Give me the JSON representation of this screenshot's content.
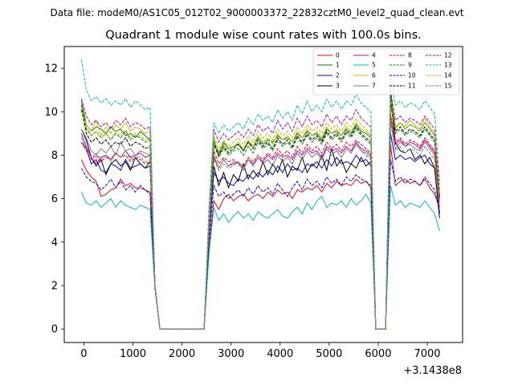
{
  "suptitle": "Data file: modeM0/AS1C05_012T02_9000003372_22832cztM0_level2_quad_clean.evt",
  "chart_data": {
    "type": "line",
    "title": "Quadrant 1 module wise count rates with 100.0s bins.",
    "xlabel": "",
    "ylabel": "",
    "x_offset_label": "+3.1438e8",
    "xlim": [
      -400,
      7720
    ],
    "ylim": [
      -0.62,
      13.0
    ],
    "x_ticks": [
      0,
      1000,
      2000,
      3000,
      4000,
      5000,
      6000,
      7000
    ],
    "x_tick_labels": [
      "0",
      "1000",
      "2000",
      "3000",
      "4000",
      "5000",
      "6000",
      "7000"
    ],
    "y_ticks": [
      0,
      2,
      4,
      6,
      8,
      10,
      12
    ],
    "y_tick_labels": [
      "0",
      "2",
      "4",
      "6",
      "8",
      "10",
      "12"
    ],
    "grid": false,
    "legend_position": "top-right",
    "x": [
      -50,
      50,
      150,
      250,
      350,
      450,
      550,
      650,
      750,
      850,
      950,
      1050,
      1150,
      1250,
      1350,
      1450,
      1550,
      2450,
      2550,
      2650,
      2750,
      2850,
      2950,
      3050,
      3150,
      3250,
      3350,
      3450,
      3550,
      3650,
      3750,
      3850,
      3950,
      4050,
      4150,
      4250,
      4350,
      4450,
      4550,
      4650,
      4750,
      4850,
      4950,
      5050,
      5150,
      5250,
      5350,
      5450,
      5550,
      5650,
      5750,
      5850,
      5950,
      6150,
      6250,
      6350,
      6450,
      6550,
      6650,
      6750,
      6850,
      6950,
      7050,
      7150,
      7250
    ],
    "series": [
      {
        "name": "0",
        "color": "#ff0000",
        "dashed": false,
        "values": [
          7.8,
          7.3,
          7.0,
          6.8,
          6.1,
          6.2,
          6.4,
          6.5,
          6.9,
          6.6,
          6.7,
          6.5,
          6.5,
          6.4,
          6.3,
          2.0,
          0.0,
          0.0,
          3.8,
          5.9,
          5.5,
          6.0,
          6.2,
          5.9,
          6.1,
          6.2,
          5.9,
          6.1,
          6.2,
          6.0,
          6.3,
          6.1,
          6.4,
          6.2,
          6.3,
          6.0,
          6.4,
          6.3,
          6.5,
          6.4,
          6.6,
          6.3,
          6.7,
          6.5,
          6.8,
          6.6,
          6.7,
          6.6,
          6.9,
          6.7,
          6.8,
          6.5,
          0.0,
          0.0,
          8.5,
          6.6,
          6.8,
          6.9,
          6.7,
          6.8,
          6.6,
          6.9,
          6.5,
          6.2,
          5.6
        ]
      },
      {
        "name": "1",
        "color": "#008000",
        "dashed": false,
        "values": [
          10.5,
          9.4,
          9.1,
          9.3,
          9.2,
          9.0,
          9.3,
          9.1,
          9.2,
          8.9,
          9.0,
          8.8,
          9.1,
          8.9,
          8.7,
          2.0,
          0.0,
          0.0,
          5.0,
          8.7,
          8.1,
          8.6,
          8.3,
          8.4,
          8.5,
          8.2,
          8.6,
          8.4,
          8.8,
          8.5,
          8.7,
          8.6,
          8.9,
          8.7,
          8.8,
          8.6,
          9.0,
          8.8,
          9.1,
          8.9,
          9.0,
          8.7,
          9.2,
          9.0,
          9.1,
          8.9,
          9.2,
          9.0,
          9.4,
          9.1,
          9.0,
          8.8,
          0.0,
          0.0,
          10.9,
          9.3,
          9.5,
          9.2,
          9.4,
          9.3,
          9.1,
          9.5,
          9.2,
          8.9,
          6.0
        ]
      },
      {
        "name": "2",
        "color": "#0000ff",
        "dashed": false,
        "values": [
          8.6,
          8.3,
          7.6,
          7.8,
          7.3,
          7.2,
          7.6,
          7.5,
          7.3,
          7.8,
          7.4,
          7.5,
          7.6,
          7.4,
          7.5,
          2.0,
          0.0,
          0.0,
          4.4,
          7.2,
          6.8,
          7.0,
          6.7,
          6.6,
          6.9,
          6.8,
          7.1,
          6.9,
          7.2,
          7.0,
          7.3,
          7.1,
          7.5,
          7.2,
          7.6,
          7.3,
          7.4,
          7.2,
          7.6,
          7.5,
          7.7,
          7.4,
          7.8,
          7.5,
          7.9,
          7.6,
          7.7,
          7.6,
          8.0,
          7.7,
          7.8,
          7.5,
          0.0,
          0.0,
          9.0,
          7.8,
          8.0,
          7.8,
          7.9,
          7.7,
          7.9,
          8.0,
          7.6,
          7.4,
          5.3
        ]
      },
      {
        "name": "3",
        "color": "#000000",
        "dashed": false,
        "values": [
          9.2,
          8.7,
          7.9,
          7.5,
          7.8,
          7.1,
          7.6,
          7.8,
          7.5,
          7.7,
          7.3,
          7.9,
          7.6,
          7.4,
          7.7,
          2.0,
          0.0,
          0.0,
          4.5,
          7.5,
          6.6,
          7.2,
          6.5,
          7.1,
          6.8,
          7.6,
          6.9,
          7.3,
          7.0,
          7.7,
          7.1,
          7.6,
          7.2,
          7.8,
          7.0,
          7.5,
          7.3,
          7.9,
          7.2,
          7.6,
          7.4,
          8.0,
          7.3,
          8.3,
          7.5,
          7.8,
          7.2,
          7.6,
          7.4,
          7.9,
          7.5,
          7.7,
          0.0,
          0.0,
          10.7,
          8.6,
          8.2,
          8.1,
          8.3,
          7.8,
          8.0,
          7.6,
          7.9,
          7.4,
          5.1
        ]
      },
      {
        "name": "4",
        "color": "#bf00bf",
        "dashed": false,
        "values": [
          9.0,
          8.4,
          7.9,
          7.6,
          7.9,
          8.0,
          7.8,
          8.1,
          7.9,
          8.2,
          7.9,
          8.0,
          8.1,
          7.9,
          8.0,
          2.0,
          0.0,
          0.0,
          4.6,
          7.9,
          7.4,
          7.8,
          7.5,
          7.6,
          7.7,
          7.4,
          7.8,
          7.6,
          7.9,
          7.7,
          8.0,
          7.8,
          8.1,
          7.9,
          8.0,
          7.8,
          8.2,
          8.0,
          8.3,
          8.1,
          8.2,
          7.9,
          8.4,
          8.2,
          8.3,
          8.1,
          8.4,
          8.2,
          8.6,
          8.3,
          8.2,
          8.0,
          0.0,
          0.0,
          9.8,
          8.5,
          8.7,
          8.4,
          8.6,
          8.5,
          8.3,
          8.7,
          8.4,
          8.1,
          5.9
        ]
      },
      {
        "name": "5",
        "color": "#00bfbf",
        "dashed": false,
        "values": [
          6.3,
          5.8,
          5.7,
          5.9,
          5.6,
          5.8,
          6.0,
          5.6,
          5.9,
          5.7,
          5.6,
          5.5,
          5.7,
          5.6,
          5.5,
          1.8,
          0.0,
          0.0,
          3.4,
          5.6,
          5.0,
          5.3,
          4.9,
          5.2,
          5.4,
          5.1,
          5.3,
          5.0,
          5.4,
          5.2,
          5.1,
          5.3,
          5.5,
          5.2,
          5.1,
          5.4,
          5.6,
          5.3,
          5.8,
          5.5,
          5.9,
          6.1,
          5.6,
          5.8,
          5.7,
          5.9,
          5.6,
          6.0,
          5.7,
          5.9,
          6.2,
          5.8,
          0.0,
          0.0,
          6.6,
          5.7,
          5.9,
          5.6,
          5.8,
          5.7,
          5.6,
          5.9,
          5.6,
          5.3,
          4.5
        ]
      },
      {
        "name": "6",
        "color": "#bfbf00",
        "dashed": false,
        "values": [
          10.1,
          9.4,
          9.1,
          9.6,
          8.9,
          9.3,
          9.0,
          9.4,
          9.2,
          9.5,
          9.1,
          9.3,
          9.2,
          9.0,
          9.1,
          2.0,
          0.0,
          0.0,
          5.0,
          8.8,
          8.0,
          8.5,
          8.2,
          8.4,
          8.6,
          8.3,
          8.7,
          8.4,
          8.9,
          8.6,
          8.8,
          8.5,
          9.0,
          8.7,
          8.9,
          8.6,
          9.1,
          8.8,
          9.2,
          8.9,
          9.1,
          8.8,
          9.3,
          9.0,
          9.2,
          8.9,
          9.3,
          9.1,
          9.5,
          9.2,
          9.1,
          8.9,
          0.0,
          0.0,
          10.3,
          9.2,
          9.5,
          9.3,
          9.6,
          9.4,
          9.2,
          9.7,
          9.3,
          9.0,
          6.2
        ]
      },
      {
        "name": "7",
        "color": "#7f7f7f",
        "dashed": false,
        "values": [
          9.2,
          8.8,
          8.2,
          8.0,
          8.3,
          8.1,
          8.4,
          8.0,
          8.6,
          8.2,
          8.3,
          8.0,
          8.2,
          8.1,
          8.0,
          2.0,
          0.0,
          0.0,
          4.7,
          8.0,
          7.4,
          7.8,
          7.5,
          7.7,
          7.6,
          7.3,
          7.8,
          7.5,
          7.9,
          7.6,
          7.8,
          7.5,
          8.0,
          7.7,
          7.9,
          7.6,
          8.1,
          7.8,
          8.2,
          7.9,
          8.1,
          7.8,
          8.3,
          8.0,
          8.2,
          7.9,
          8.3,
          8.1,
          8.5,
          8.2,
          8.1,
          7.9,
          0.0,
          0.0,
          9.6,
          8.3,
          8.6,
          8.4,
          8.5,
          8.3,
          8.2,
          8.6,
          8.3,
          8.0,
          5.8
        ]
      },
      {
        "name": "8",
        "color": "#ff0000",
        "dashed": true,
        "values": [
          8.6,
          8.2,
          7.8,
          8.0,
          7.7,
          7.9,
          7.8,
          8.1,
          7.9,
          8.0,
          7.7,
          7.9,
          7.8,
          7.6,
          7.7,
          2.0,
          0.0,
          0.0,
          4.6,
          8.2,
          7.6,
          7.9,
          7.7,
          7.8,
          7.6,
          7.5,
          7.9,
          7.7,
          8.0,
          7.8,
          8.1,
          7.9,
          8.3,
          8.0,
          8.2,
          7.9,
          8.4,
          8.1,
          8.5,
          8.2,
          8.4,
          8.1,
          8.6,
          8.3,
          8.5,
          8.2,
          8.6,
          8.4,
          8.7,
          8.5,
          8.3,
          8.1,
          0.0,
          0.0,
          9.9,
          8.6,
          8.8,
          8.5,
          8.7,
          8.6,
          8.4,
          8.8,
          8.5,
          8.2,
          5.9
        ]
      },
      {
        "name": "9",
        "color": "#008000",
        "dashed": true,
        "values": [
          10.3,
          9.2,
          8.9,
          9.1,
          8.8,
          9.0,
          8.7,
          9.0,
          8.8,
          9.1,
          8.7,
          8.9,
          8.8,
          8.6,
          8.7,
          2.0,
          0.0,
          0.0,
          4.9,
          8.5,
          7.9,
          8.3,
          8.0,
          8.2,
          8.3,
          8.0,
          8.4,
          8.1,
          8.6,
          8.3,
          8.5,
          8.2,
          8.7,
          8.4,
          8.6,
          8.3,
          8.8,
          8.5,
          8.9,
          8.6,
          8.8,
          8.5,
          9.0,
          8.7,
          8.9,
          8.6,
          9.0,
          8.8,
          9.2,
          8.9,
          8.7,
          8.5,
          0.0,
          0.0,
          10.4,
          9.0,
          9.2,
          8.9,
          9.1,
          9.0,
          8.8,
          9.2,
          8.9,
          8.6,
          6.1
        ]
      },
      {
        "name": "10",
        "color": "#0000ff",
        "dashed": true,
        "values": [
          7.4,
          7.0,
          6.8,
          6.7,
          6.4,
          6.6,
          6.9,
          6.5,
          6.8,
          6.4,
          6.6,
          6.3,
          6.6,
          6.4,
          6.2,
          1.9,
          0.0,
          0.0,
          4.0,
          6.6,
          6.1,
          6.3,
          6.0,
          6.2,
          6.4,
          6.1,
          6.5,
          6.2,
          6.6,
          6.3,
          6.5,
          6.2,
          6.7,
          6.4,
          6.1,
          6.5,
          6.8,
          6.4,
          6.9,
          6.6,
          6.8,
          6.5,
          7.0,
          6.7,
          6.9,
          6.6,
          7.0,
          6.8,
          7.1,
          6.9,
          6.8,
          6.6,
          0.0,
          0.0,
          7.8,
          6.8,
          7.0,
          6.7,
          6.9,
          6.8,
          6.6,
          7.0,
          6.7,
          6.4,
          5.4
        ]
      },
      {
        "name": "11",
        "color": "#000000",
        "dashed": true,
        "values": [
          10.1,
          9.0,
          8.6,
          8.8,
          8.5,
          8.7,
          8.4,
          8.6,
          8.5,
          8.8,
          8.4,
          8.6,
          8.5,
          8.3,
          8.4,
          2.0,
          0.0,
          0.0,
          4.8,
          8.6,
          8.0,
          8.4,
          8.1,
          8.3,
          8.5,
          8.2,
          8.6,
          8.3,
          8.7,
          8.4,
          8.6,
          8.3,
          8.8,
          8.5,
          8.7,
          8.4,
          8.9,
          8.6,
          9.0,
          8.7,
          8.9,
          8.6,
          9.1,
          8.8,
          9.0,
          8.7,
          9.1,
          8.9,
          9.3,
          9.0,
          8.8,
          8.6,
          0.0,
          0.0,
          10.5,
          9.1,
          9.3,
          9.0,
          9.2,
          9.1,
          8.9,
          9.3,
          9.0,
          8.7,
          6.1
        ]
      },
      {
        "name": "12",
        "color": "#bf00bf",
        "dashed": true,
        "values": [
          10.6,
          9.8,
          9.4,
          9.6,
          9.3,
          9.5,
          9.2,
          9.6,
          9.4,
          9.7,
          9.3,
          9.5,
          9.4,
          9.2,
          9.3,
          2.0,
          0.0,
          0.0,
          5.1,
          9.2,
          8.6,
          9.0,
          8.7,
          8.9,
          9.1,
          8.8,
          9.2,
          8.9,
          9.4,
          9.1,
          9.3,
          9.0,
          9.6,
          9.2,
          9.5,
          9.1,
          9.7,
          9.3,
          9.8,
          9.4,
          9.6,
          9.3,
          9.9,
          9.5,
          9.8,
          9.4,
          9.8,
          9.6,
          10.1,
          9.7,
          9.5,
          9.3,
          0.0,
          0.0,
          11.0,
          9.6,
          9.8,
          9.5,
          9.7,
          9.6,
          9.4,
          9.8,
          9.5,
          9.2,
          6.4
        ]
      },
      {
        "name": "13",
        "color": "#00bfbf",
        "dashed": true,
        "values": [
          12.4,
          11.0,
          10.5,
          10.7,
          10.4,
          10.6,
          10.3,
          10.5,
          10.3,
          10.6,
          10.2,
          10.5,
          10.3,
          10.1,
          10.2,
          2.0,
          0.0,
          0.0,
          5.6,
          9.5,
          9.0,
          9.4,
          9.1,
          9.3,
          9.5,
          9.2,
          9.7,
          9.4,
          9.9,
          9.6,
          9.8,
          9.5,
          10.1,
          9.7,
          10.0,
          9.6,
          10.3,
          9.9,
          10.5,
          10.0,
          10.3,
          10.0,
          10.6,
          10.2,
          10.5,
          10.1,
          10.5,
          10.3,
          10.8,
          10.4,
          10.2,
          10.0,
          0.0,
          0.0,
          11.8,
          10.3,
          10.5,
          10.2,
          10.4,
          10.3,
          10.1,
          10.5,
          10.2,
          9.9,
          6.8
        ]
      },
      {
        "name": "14",
        "color": "#bfbf00",
        "dashed": true,
        "values": [
          10.0,
          9.3,
          8.9,
          9.1,
          8.8,
          9.0,
          8.7,
          9.1,
          8.9,
          9.2,
          8.8,
          9.0,
          8.9,
          8.7,
          8.8,
          2.0,
          0.0,
          0.0,
          4.9,
          8.9,
          8.3,
          8.7,
          8.4,
          8.6,
          8.8,
          8.5,
          8.9,
          8.6,
          9.1,
          8.8,
          9.0,
          8.7,
          9.2,
          8.9,
          9.1,
          8.8,
          9.3,
          9.0,
          9.4,
          9.1,
          9.3,
          9.0,
          9.5,
          9.2,
          9.4,
          9.1,
          9.5,
          9.3,
          9.7,
          9.4,
          9.2,
          9.0,
          0.0,
          0.0,
          10.6,
          9.3,
          9.5,
          9.2,
          9.4,
          9.3,
          9.1,
          9.5,
          9.2,
          8.9,
          6.2
        ]
      },
      {
        "name": "15",
        "color": "#7f7f7f",
        "dashed": true,
        "values": [
          8.8,
          8.3,
          7.9,
          8.1,
          7.8,
          8.0,
          7.7,
          8.1,
          7.9,
          8.2,
          7.8,
          8.0,
          7.9,
          7.7,
          7.8,
          2.0,
          0.0,
          0.0,
          4.6,
          7.8,
          7.3,
          7.6,
          7.4,
          7.5,
          7.7,
          7.4,
          7.8,
          7.5,
          7.9,
          7.6,
          7.8,
          7.5,
          8.0,
          7.7,
          7.9,
          7.6,
          8.1,
          7.8,
          8.2,
          7.9,
          8.1,
          7.8,
          8.3,
          8.0,
          8.2,
          7.9,
          8.3,
          8.1,
          8.5,
          8.2,
          8.0,
          7.8,
          0.0,
          0.0,
          9.5,
          8.2,
          8.4,
          8.1,
          8.3,
          8.2,
          8.0,
          8.4,
          8.1,
          7.8,
          5.7
        ]
      }
    ]
  }
}
